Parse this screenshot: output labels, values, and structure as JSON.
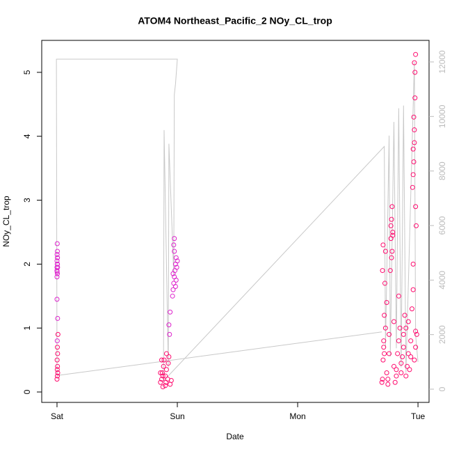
{
  "chart_data": {
    "type": "scatter",
    "title": "ATOM4 Northeast_Pacific_2 NOy_CL_trop",
    "x_label": "Date",
    "y_label": "NOy_CL_trop",
    "xlim": [
      -0.127,
      3.092
    ],
    "xticks": [
      {
        "value": 0,
        "label": "Sat"
      },
      {
        "value": 1,
        "label": "Sun"
      },
      {
        "value": 2,
        "label": "Mon"
      },
      {
        "value": 3,
        "label": "Tue"
      }
    ],
    "ylim": [
      -0.163,
      5.5
    ],
    "yticks": [
      0,
      1,
      2,
      3,
      4,
      5
    ],
    "y2lim": [
      -485,
      12790
    ],
    "y2ticks": [
      0,
      2000,
      4000,
      6000,
      8000,
      10000,
      12000
    ],
    "series": [
      {
        "color": "#dd22cc",
        "x": [
          0.0,
          0.003,
          0.0,
          0.005,
          0.002,
          0.0,
          0.004,
          0.001,
          0.003,
          0.002,
          0.0,
          0.004,
          0.001,
          0.003,
          0.96,
          0.965,
          0.97,
          0.975,
          0.98,
          0.985,
          0.99,
          0.975,
          0.97,
          0.975,
          0.99,
          0.995,
          1.0,
          0.985,
          0.965,
          0.0,
          0.005,
          0.002,
          0.93,
          0.94,
          0.935
        ],
        "y": [
          1.8,
          1.85,
          1.9,
          1.95,
          2.0,
          2.05,
          2.1,
          2.15,
          2.2,
          2.32,
          1.95,
          2.0,
          1.88,
          2.1,
          1.5,
          1.6,
          1.7,
          1.8,
          1.9,
          2.0,
          2.1,
          2.2,
          2.3,
          2.4,
          1.75,
          1.95,
          2.05,
          1.65,
          1.85,
          1.45,
          1.15,
          0.8,
          1.05,
          1.25,
          0.9
        ]
      },
      {
        "color": "#ff0a6e",
        "x": [
          0.0,
          0.003,
          0.006,
          0.002,
          0.004,
          0.001,
          0.005,
          0.003,
          0.008,
          0.86,
          0.87,
          0.875,
          0.88,
          0.885,
          0.89,
          0.9,
          0.905,
          0.91,
          0.92,
          0.925,
          0.93,
          0.86,
          0.88,
          0.9,
          0.91,
          0.87,
          0.94,
          0.95,
          2.7,
          2.705,
          2.71,
          2.715,
          2.72,
          2.725,
          2.73,
          2.74,
          2.75,
          2.76,
          2.77,
          2.775,
          2.78,
          2.785,
          2.79,
          2.8,
          2.81,
          2.82,
          2.83,
          2.84,
          2.85,
          2.86,
          2.87,
          2.88,
          2.89,
          2.9,
          2.91,
          2.92,
          2.93,
          2.94,
          2.95,
          2.96,
          2.97,
          2.98,
          2.99,
          2.72,
          2.74,
          2.76,
          2.78,
          2.8,
          2.82,
          2.84,
          2.86,
          2.88,
          2.9,
          2.92,
          2.94,
          2.96,
          2.98,
          2.71,
          2.73,
          2.75,
          2.705,
          2.715,
          2.775,
          2.785,
          2.79,
          2.955,
          2.965,
          2.97,
          2.975,
          2.98,
          2.96,
          2.965,
          2.975,
          2.97,
          2.98,
          2.985,
          2.96,
          2.97
        ],
        "y": [
          0.2,
          0.25,
          0.3,
          0.35,
          0.4,
          0.5,
          0.6,
          0.7,
          0.9,
          0.15,
          0.2,
          0.3,
          0.25,
          0.4,
          0.5,
          0.1,
          0.15,
          0.35,
          0.2,
          0.45,
          0.55,
          0.3,
          0.08,
          0.25,
          0.6,
          0.5,
          0.12,
          0.18,
          0.15,
          0.2,
          0.5,
          0.8,
          1.2,
          1.7,
          2.2,
          0.3,
          0.12,
          0.6,
          1.9,
          2.4,
          2.7,
          2.9,
          2.5,
          0.4,
          0.15,
          0.25,
          0.6,
          0.8,
          1.0,
          0.3,
          0.55,
          0.7,
          1.2,
          1.0,
          0.4,
          0.6,
          0.35,
          0.8,
          1.3,
          2.0,
          0.5,
          0.7,
          0.9,
          0.6,
          1.4,
          0.9,
          2.1,
          1.1,
          0.35,
          1.5,
          0.45,
          0.9,
          0.25,
          1.1,
          0.55,
          1.6,
          0.95,
          2.3,
          1.0,
          0.2,
          1.9,
          0.7,
          2.6,
          2.2,
          2.45,
          3.2,
          3.6,
          4.1,
          4.6,
          5.28,
          3.8,
          4.3,
          5.0,
          5.15,
          2.9,
          2.6,
          3.4,
          3.9
        ]
      }
    ],
    "line": {
      "color": "#c8c8c8",
      "x": [
        2.7,
        0.0,
        -0.005,
        1.0,
        0.985,
        0.975,
        0.97,
        0.93,
        0.925,
        0.89,
        0.885,
        2.72,
        2.73,
        2.76,
        2.77,
        2.8,
        2.82,
        2.84,
        2.86,
        2.88,
        2.9,
        2.97,
        2.98,
        3.0
      ],
      "y": [
        2100,
        500,
        12100,
        12100,
        11200,
        10800,
        4200,
        9000,
        800,
        9500,
        300,
        8900,
        1500,
        9300,
        1200,
        9800,
        1500,
        10300,
        800,
        10400,
        600,
        12000,
        2000,
        1000
      ]
    }
  }
}
